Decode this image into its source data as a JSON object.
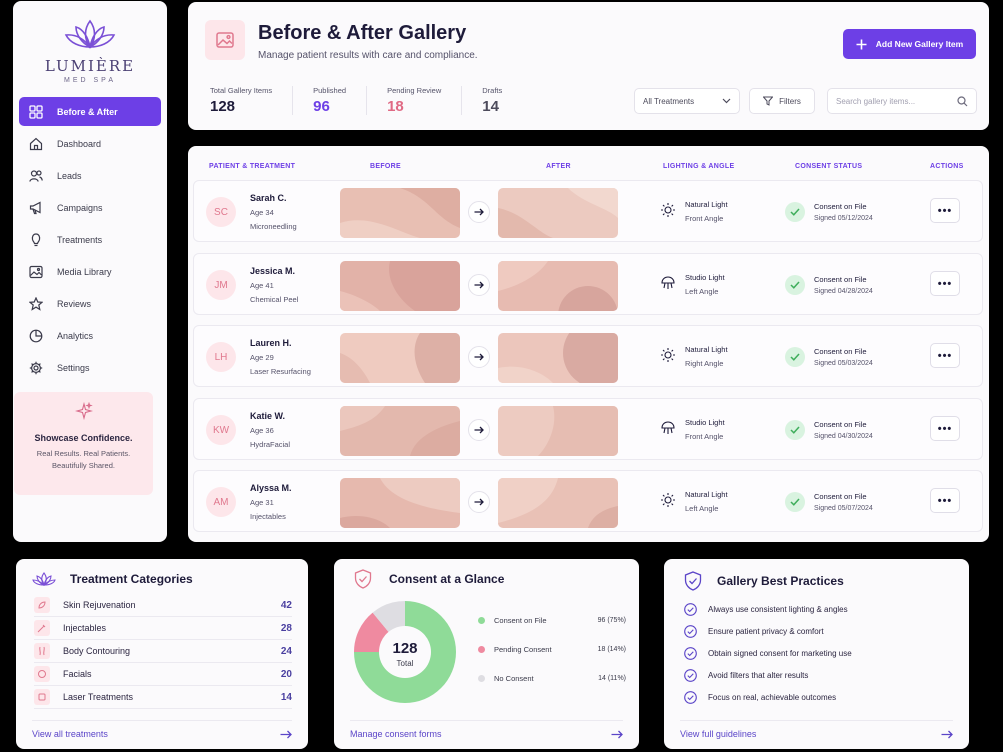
{
  "brand": {
    "name": "LUMIÈRE",
    "sub": "MED SPA"
  },
  "sidebar": {
    "items": [
      {
        "label": "Before & After",
        "icon": "grid-icon",
        "active": true
      },
      {
        "label": "Dashboard",
        "icon": "home-icon"
      },
      {
        "label": "Leads",
        "icon": "users-icon"
      },
      {
        "label": "Campaigns",
        "icon": "megaphone-icon"
      },
      {
        "label": "Treatments",
        "icon": "treatment-icon"
      },
      {
        "label": "Media Library",
        "icon": "image-icon"
      },
      {
        "label": "Reviews",
        "icon": "star-icon"
      },
      {
        "label": "Analytics",
        "icon": "pie-chart-icon"
      },
      {
        "label": "Settings",
        "icon": "gear-icon"
      }
    ],
    "promo": {
      "title": "Showcase Confidence.",
      "line1": "Real Results. Real Patients.",
      "line2": "Beautifully Shared."
    }
  },
  "header": {
    "title": "Before & After Gallery",
    "subtitle": "Manage patient results with care and compliance.",
    "add_button": "Add New Gallery Item",
    "stats": [
      {
        "label": "Total Gallery Items",
        "value": "128",
        "tone": "dark"
      },
      {
        "label": "Published",
        "value": "96",
        "tone": "purple"
      },
      {
        "label": "Pending Review",
        "value": "18",
        "tone": "pink"
      },
      {
        "label": "Drafts",
        "value": "14",
        "tone": "gray"
      }
    ],
    "treatment_filter": "All Treatments",
    "filters_label": "Filters",
    "search_placeholder": "Search gallery items..."
  },
  "table": {
    "columns": {
      "patient": "PATIENT & TREATMENT",
      "before": "BEFORE",
      "after": "AFTER",
      "lighting": "LIGHTING & ANGLE",
      "consent": "CONSENT STATUS",
      "actions": "ACTIONS"
    },
    "rows": [
      {
        "initials": "SC",
        "name": "Sarah C.",
        "age": "Age 34",
        "treatment": "Microneedling",
        "lighting": "Natural Light",
        "angle": "Front Angle",
        "light_icon": "sun-icon",
        "consent": "Consent on File",
        "signed": "Signed 05/12/2024"
      },
      {
        "initials": "JM",
        "name": "Jessica M.",
        "age": "Age 41",
        "treatment": "Chemical Peel",
        "lighting": "Studio Light",
        "angle": "Left Angle",
        "light_icon": "studio-light-icon",
        "consent": "Consent on File",
        "signed": "Signed 04/28/2024"
      },
      {
        "initials": "LH",
        "name": "Lauren H.",
        "age": "Age 29",
        "treatment": "Laser Resurfacing",
        "lighting": "Natural Light",
        "angle": "Right Angle",
        "light_icon": "sun-icon",
        "consent": "Consent on File",
        "signed": "Signed 05/03/2024"
      },
      {
        "initials": "KW",
        "name": "Katie W.",
        "age": "Age 36",
        "treatment": "HydraFacial",
        "lighting": "Studio Light",
        "angle": "Front Angle",
        "light_icon": "studio-light-icon",
        "consent": "Consent on File",
        "signed": "Signed 04/30/2024"
      },
      {
        "initials": "AM",
        "name": "Alyssa M.",
        "age": "Age 31",
        "treatment": "Injectables",
        "lighting": "Natural Light",
        "angle": "Left Angle",
        "light_icon": "sun-icon",
        "consent": "Consent on File",
        "signed": "Signed 05/07/2024"
      }
    ],
    "more_label": "•••"
  },
  "categories": {
    "title": "Treatment Categories",
    "items": [
      {
        "label": "Skin Rejuvenation",
        "count": "42"
      },
      {
        "label": "Injectables",
        "count": "28"
      },
      {
        "label": "Body Contouring",
        "count": "24"
      },
      {
        "label": "Facials",
        "count": "20"
      },
      {
        "label": "Laser Treatments",
        "count": "14"
      }
    ],
    "link": "View all treatments"
  },
  "consent": {
    "title": "Consent at a Glance",
    "total": "128",
    "total_label": "Total",
    "link": "Manage consent forms",
    "colors": {
      "on_file": "#8fdb98",
      "pending": "#ef8aa0",
      "none": "#dedde2"
    }
  },
  "chart_data": {
    "type": "pie",
    "title": "Consent at a Glance",
    "categories": [
      "Consent on File",
      "Pending Consent",
      "No Consent"
    ],
    "values": [
      96,
      18,
      14
    ],
    "labels": [
      "96 (75%)",
      "18 (14%)",
      "14 (11%)"
    ],
    "center_value": "128",
    "center_label": "Total",
    "colors": [
      "#8fdb98",
      "#ef8aa0",
      "#dedde2"
    ],
    "legend": "right"
  },
  "practices": {
    "title": "Gallery Best Practices",
    "items": [
      "Always use consistent lighting & angles",
      "Ensure patient privacy & comfort",
      "Obtain signed consent for marketing use",
      "Avoid filters that alter results",
      "Focus on real, achievable outcomes"
    ],
    "link": "View full guidelines"
  },
  "colors": {
    "accent": "#6d3fe6",
    "pink": "#e06a85",
    "success": "#3fae5c"
  }
}
